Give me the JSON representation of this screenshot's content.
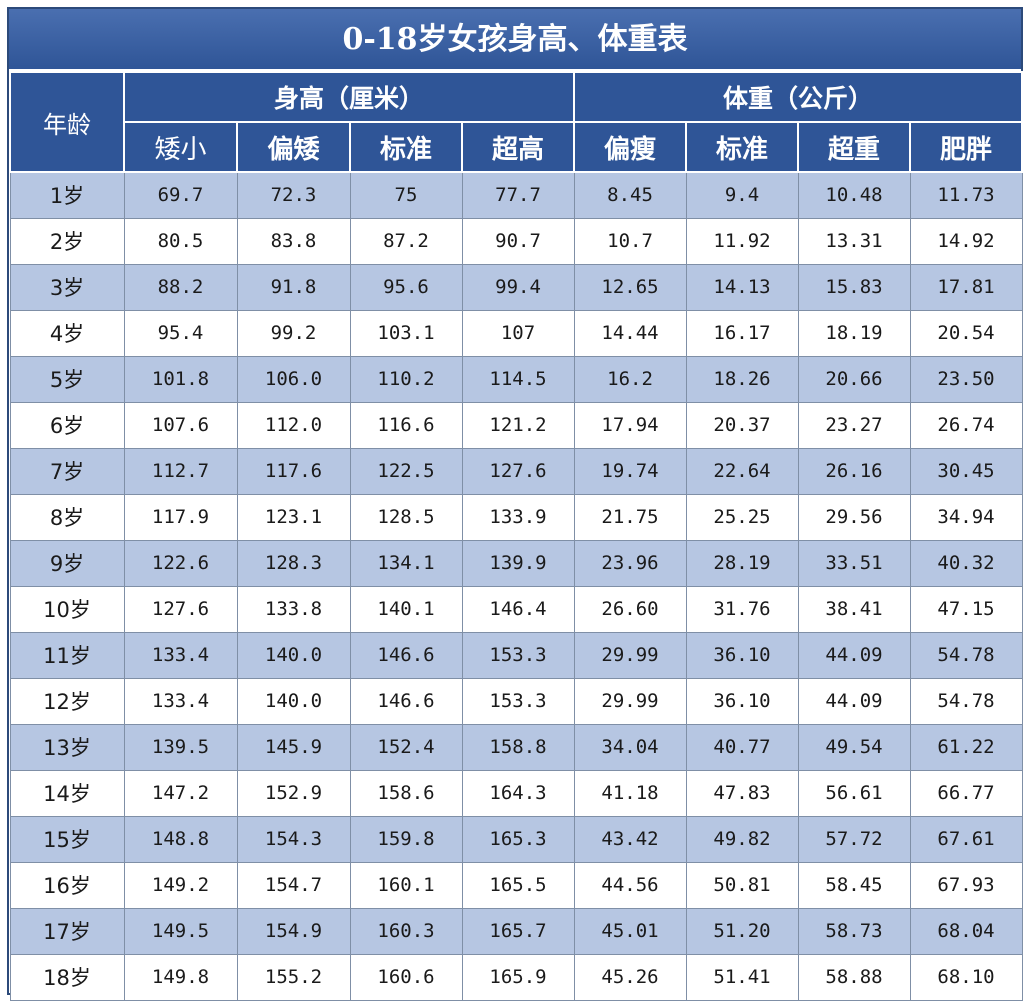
{
  "title": "0-18岁女孩身高、体重表",
  "header": {
    "age_label": "年龄",
    "height_group": "身高（厘米）",
    "weight_group": "体重（公斤）",
    "height_columns": [
      "矮小",
      "偏矮",
      "标准",
      "超高"
    ],
    "weight_columns": [
      "偏瘦",
      "标准",
      "超重",
      "肥胖"
    ]
  },
  "colors": {
    "header_blue": "#2f5597",
    "band_blue": "#b6c6e2",
    "plain_white": "#ffffff"
  },
  "rows": [
    {
      "age": "1岁",
      "values": [
        "69.7",
        "72.3",
        "75",
        "77.7",
        "8.45",
        "9.4",
        "10.48",
        "11.73"
      ]
    },
    {
      "age": "2岁",
      "values": [
        "80.5",
        "83.8",
        "87.2",
        "90.7",
        "10.7",
        "11.92",
        "13.31",
        "14.92"
      ]
    },
    {
      "age": "3岁",
      "values": [
        "88.2",
        "91.8",
        "95.6",
        "99.4",
        "12.65",
        "14.13",
        "15.83",
        "17.81"
      ]
    },
    {
      "age": "4岁",
      "values": [
        "95.4",
        "99.2",
        "103.1",
        "107",
        "14.44",
        "16.17",
        "18.19",
        "20.54"
      ]
    },
    {
      "age": "5岁",
      "values": [
        "101.8",
        "106.0",
        "110.2",
        "114.5",
        "16.2",
        "18.26",
        "20.66",
        "23.50"
      ]
    },
    {
      "age": "6岁",
      "values": [
        "107.6",
        "112.0",
        "116.6",
        "121.2",
        "17.94",
        "20.37",
        "23.27",
        "26.74"
      ]
    },
    {
      "age": "7岁",
      "values": [
        "112.7",
        "117.6",
        "122.5",
        "127.6",
        "19.74",
        "22.64",
        "26.16",
        "30.45"
      ]
    },
    {
      "age": "8岁",
      "values": [
        "117.9",
        "123.1",
        "128.5",
        "133.9",
        "21.75",
        "25.25",
        "29.56",
        "34.94"
      ]
    },
    {
      "age": "9岁",
      "values": [
        "122.6",
        "128.3",
        "134.1",
        "139.9",
        "23.96",
        "28.19",
        "33.51",
        "40.32"
      ]
    },
    {
      "age": "10岁",
      "values": [
        "127.6",
        "133.8",
        "140.1",
        "146.4",
        "26.60",
        "31.76",
        "38.41",
        "47.15"
      ]
    },
    {
      "age": "11岁",
      "values": [
        "133.4",
        "140.0",
        "146.6",
        "153.3",
        "29.99",
        "36.10",
        "44.09",
        "54.78"
      ]
    },
    {
      "age": "12岁",
      "values": [
        "133.4",
        "140.0",
        "146.6",
        "153.3",
        "29.99",
        "36.10",
        "44.09",
        "54.78"
      ]
    },
    {
      "age": "13岁",
      "values": [
        "139.5",
        "145.9",
        "152.4",
        "158.8",
        "34.04",
        "40.77",
        "49.54",
        "61.22"
      ]
    },
    {
      "age": "14岁",
      "values": [
        "147.2",
        "152.9",
        "158.6",
        "164.3",
        "41.18",
        "47.83",
        "56.61",
        "66.77"
      ]
    },
    {
      "age": "15岁",
      "values": [
        "148.8",
        "154.3",
        "159.8",
        "165.3",
        "43.42",
        "49.82",
        "57.72",
        "67.61"
      ]
    },
    {
      "age": "16岁",
      "values": [
        "149.2",
        "154.7",
        "160.1",
        "165.5",
        "44.56",
        "50.81",
        "58.45",
        "67.93"
      ]
    },
    {
      "age": "17岁",
      "values": [
        "149.5",
        "154.9",
        "160.3",
        "165.7",
        "45.01",
        "51.20",
        "58.73",
        "68.04"
      ]
    },
    {
      "age": "18岁",
      "values": [
        "149.8",
        "155.2",
        "160.6",
        "165.9",
        "45.26",
        "51.41",
        "58.88",
        "68.10"
      ]
    }
  ]
}
